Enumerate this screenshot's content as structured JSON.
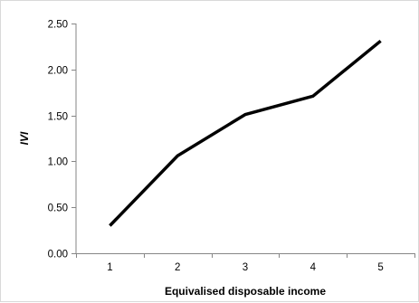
{
  "chart_data": {
    "type": "line",
    "categories": [
      "1",
      "2",
      "3",
      "4",
      "5"
    ],
    "series": [
      {
        "values": [
          0.3,
          1.06,
          1.51,
          1.71,
          2.31
        ]
      }
    ],
    "title": "",
    "xlabel": "Equivalised disposable income",
    "ylabel": "IVI",
    "ylim": [
      0,
      2.5
    ],
    "yticks": [
      "0.00",
      "0.50",
      "1.00",
      "1.50",
      "2.00",
      "2.50"
    ],
    "grid": false,
    "legend": "none",
    "line_color": "#000000",
    "axis_color": "#868686"
  }
}
